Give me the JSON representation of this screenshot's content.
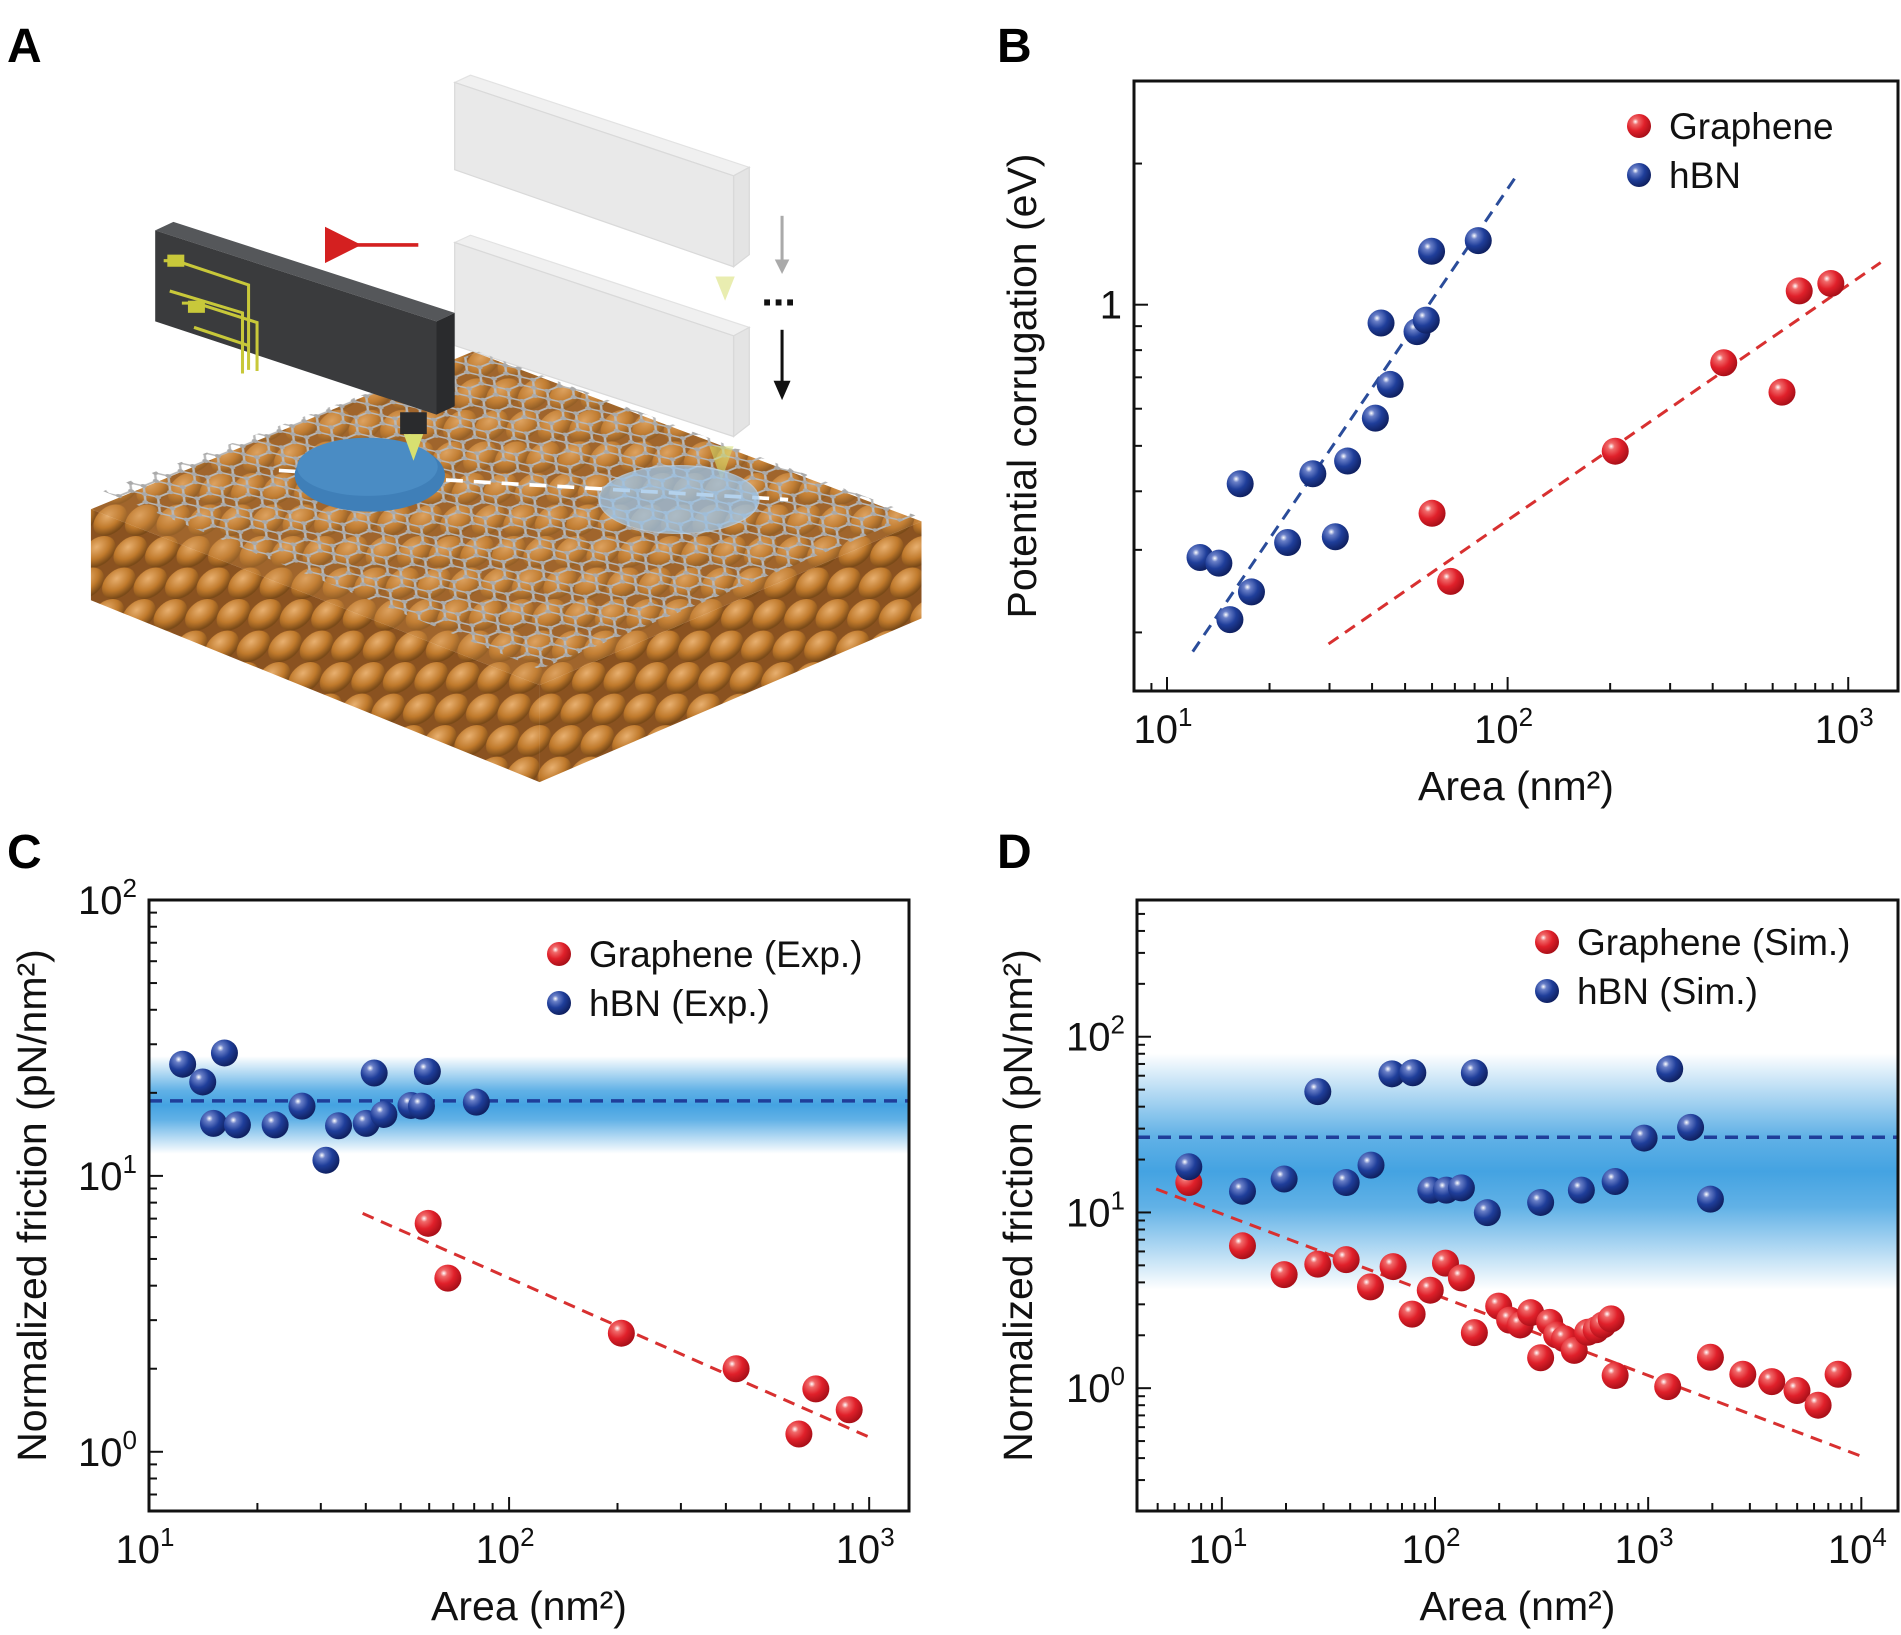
{
  "panel_labels": {
    "a": "A",
    "b": "B",
    "c": "C",
    "d": "D"
  },
  "panel_a": {
    "ellipsis": "...",
    "colors": {
      "substrate": "#c07a2c",
      "graphene": "#9a9a9a",
      "cantilever": "#3a3b3d",
      "circuit": "#c8c83a",
      "contact": "#3f7fb8",
      "arrow_move": "#d42020"
    }
  },
  "chart_data": [
    {
      "panel": "B",
      "type": "scatter",
      "xlabel": "Area (nm²)",
      "ylabel": "Potential corrugation (eV)",
      "xscale": "log",
      "yscale": "log",
      "xlim": [
        8,
        1400
      ],
      "ylim": [
        0.15,
        3
      ],
      "grid": false,
      "legend": "top-right",
      "x_ticks": [
        {
          "value": 10,
          "base": "10",
          "exp": "1"
        },
        {
          "value": 100,
          "base": "10",
          "exp": "2"
        },
        {
          "value": 1000,
          "base": "10",
          "exp": "3"
        }
      ],
      "y_ticks": [
        {
          "value": 1,
          "base": "1",
          "exp": ""
        }
      ],
      "series": [
        {
          "name": "Graphene",
          "color": "#e0202a",
          "points": [
            [
              60,
              0.359
            ],
            [
              68,
              0.257
            ],
            [
              207,
              0.487
            ],
            [
              431,
              0.752
            ],
            [
              639,
              0.651
            ],
            [
              718,
              1.07
            ],
            [
              889,
              1.11
            ]
          ]
        },
        {
          "name": "hBN",
          "color": "#1f3e9a",
          "points": [
            [
              12.5,
              0.289
            ],
            [
              14.2,
              0.281
            ],
            [
              16.4,
              0.415
            ],
            [
              17.7,
              0.244
            ],
            [
              15.3,
              0.213
            ],
            [
              22.6,
              0.311
            ],
            [
              31.2,
              0.32
            ],
            [
              26.8,
              0.436
            ],
            [
              33.9,
              0.464
            ],
            [
              40.9,
              0.573
            ],
            [
              45.2,
              0.676
            ],
            [
              42.5,
              0.914
            ],
            [
              54.2,
              0.876
            ],
            [
              57.7,
              0.927
            ],
            [
              59.8,
              1.3
            ],
            [
              82,
              1.37
            ]
          ]
        }
      ],
      "fits": [
        {
          "series": "hBN",
          "from": [
            11.9,
            0.182
          ],
          "to": [
            106,
            1.88
          ],
          "color": "#2a4c9a",
          "style": "dashed"
        },
        {
          "series": "Graphene",
          "from": [
            29.8,
            0.189
          ],
          "to": [
            1245,
            1.23
          ],
          "color": "#d83030",
          "style": "dashed"
        }
      ]
    },
    {
      "panel": "C",
      "type": "scatter",
      "xlabel": "Area (nm²)",
      "ylabel": "Normalized friction (pN/nm²)",
      "xscale": "log",
      "yscale": "log",
      "xlim": [
        10,
        1290
      ],
      "ylim": [
        0.61,
        100
      ],
      "grid": false,
      "legend": "top-right",
      "x_ticks": [
        {
          "value": 10,
          "base": "10",
          "exp": "1"
        },
        {
          "value": 100,
          "base": "10",
          "exp": "2"
        },
        {
          "value": 1000,
          "base": "10",
          "exp": "3"
        }
      ],
      "y_ticks": [
        {
          "value": 1,
          "base": "10",
          "exp": "0"
        },
        {
          "value": 10,
          "base": "10",
          "exp": "1"
        },
        {
          "value": 100,
          "base": "10",
          "exp": "2"
        }
      ],
      "band": {
        "center": 18.7,
        "low": 14.0,
        "high": 23.3,
        "color": "#3a9ee0",
        "line_color": "#1f3e9a"
      },
      "series": [
        {
          "name": "Graphene (Exp.)",
          "color": "#e0202a",
          "points": [
            [
              59.6,
              6.73
            ],
            [
              67.6,
              4.26
            ],
            [
              205,
              2.69
            ],
            [
              427,
              2.0
            ],
            [
              711,
              1.69
            ],
            [
              638,
              1.16
            ],
            [
              880,
              1.42
            ]
          ]
        },
        {
          "name": "hBN (Exp.)",
          "color": "#1f3e9a",
          "points": [
            [
              12.4,
              25.4
            ],
            [
              14.1,
              21.9
            ],
            [
              16.2,
              27.9
            ],
            [
              15.1,
              15.5
            ],
            [
              17.6,
              15.3
            ],
            [
              22.4,
              15.3
            ],
            [
              26.6,
              17.9
            ],
            [
              31.0,
              11.4
            ],
            [
              33.6,
              15.2
            ],
            [
              40.1,
              15.5
            ],
            [
              42.2,
              23.6
            ],
            [
              44.9,
              16.7
            ],
            [
              53.4,
              18.0
            ],
            [
              57.1,
              17.9
            ],
            [
              59.3,
              23.9
            ],
            [
              81.1,
              18.5
            ]
          ]
        }
      ],
      "fits": [
        {
          "series": "Graphene (Exp.)",
          "from": [
            39.2,
            7.31
          ],
          "to": [
            1000,
            1.13
          ],
          "color": "#d83030",
          "style": "dashed"
        }
      ]
    },
    {
      "panel": "D",
      "type": "scatter",
      "xlabel": "Area (nm²)",
      "ylabel": "Normalized friction (pN/nm²)",
      "xscale": "log",
      "yscale": "log",
      "xlim": [
        4,
        14860
      ],
      "ylim": [
        0.2,
        600
      ],
      "grid": false,
      "legend": "top-right",
      "x_ticks": [
        {
          "value": 10,
          "base": "10",
          "exp": "1"
        },
        {
          "value": 100,
          "base": "10",
          "exp": "2"
        },
        {
          "value": 1000,
          "base": "10",
          "exp": "3"
        },
        {
          "value": 10000,
          "base": "10",
          "exp": "4"
        }
      ],
      "y_ticks": [
        {
          "value": 1,
          "base": "10",
          "exp": "0"
        },
        {
          "value": 10,
          "base": "10",
          "exp": "1"
        },
        {
          "value": 100,
          "base": "10",
          "exp": "2"
        }
      ],
      "band": {
        "center": 26.8,
        "low": 6.5,
        "high": 45,
        "color": "#3a9ee0",
        "line_color": "#1f3e9a"
      },
      "series": [
        {
          "name": "Graphene (Sim.)",
          "color": "#e0202a",
          "points": [
            [
              7.0,
              14.8
            ],
            [
              12.5,
              6.46
            ],
            [
              19.6,
              4.43
            ],
            [
              28.2,
              5.08
            ],
            [
              38.3,
              5.39
            ],
            [
              49.8,
              3.77
            ],
            [
              63.6,
              4.92
            ],
            [
              78.1,
              2.64
            ],
            [
              95,
              3.61
            ],
            [
              112,
              5.15
            ],
            [
              133,
              4.24
            ],
            [
              153,
              2.07
            ],
            [
              199,
              2.93
            ],
            [
              224,
              2.44
            ],
            [
              251,
              2.29
            ],
            [
              281,
              2.69
            ],
            [
              313,
              1.49
            ],
            [
              345,
              2.37
            ],
            [
              372,
              2.01
            ],
            [
              405,
              1.91
            ],
            [
              450,
              1.64
            ],
            [
              520,
              2.08
            ],
            [
              570,
              2.15
            ],
            [
              614,
              2.29
            ],
            [
              670,
              2.48
            ],
            [
              700,
              1.18
            ],
            [
              1235,
              1.02
            ],
            [
              1959,
              1.5
            ],
            [
              2780,
              1.2
            ],
            [
              3800,
              1.09
            ],
            [
              4990,
              0.97
            ],
            [
              6270,
              0.8
            ],
            [
              7780,
              1.2
            ]
          ]
        },
        {
          "name": "hBN (Sim.)",
          "color": "#1f3e9a",
          "points": [
            [
              7.0,
              18.2
            ],
            [
              12.5,
              13.2
            ],
            [
              19.6,
              15.5
            ],
            [
              28.2,
              48.7
            ],
            [
              38.3,
              14.8
            ],
            [
              50.1,
              18.6
            ],
            [
              62.8,
              61.5
            ],
            [
              78.7,
              62.4
            ],
            [
              95.6,
              13.4
            ],
            [
              113,
              13.4
            ],
            [
              133,
              13.8
            ],
            [
              176,
              9.97
            ],
            [
              153,
              62.4
            ],
            [
              313,
              11.4
            ],
            [
              486,
              13.4
            ],
            [
              700,
              15.0
            ],
            [
              957,
              26.5
            ],
            [
              1262,
              65.6
            ],
            [
              1581,
              30.5
            ],
            [
              1959,
              11.9
            ]
          ]
        }
      ],
      "fits": [
        {
          "series": "Graphene (Sim.)",
          "from": [
            4.92,
            13.6
          ],
          "to": [
            10000,
            0.41
          ],
          "color": "#d83030",
          "style": "dashed"
        }
      ]
    }
  ]
}
